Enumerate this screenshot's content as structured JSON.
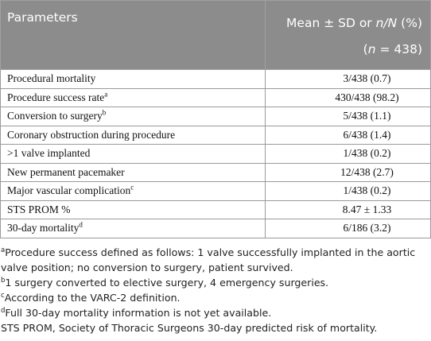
{
  "table": {
    "header": {
      "col1": "Parameters",
      "col2": {
        "line1": [
          "Mean ± SD or ",
          "n/N",
          " (%)"
        ],
        "line2": [
          "(",
          "n",
          " = 438)"
        ]
      }
    },
    "rows": [
      {
        "label": "Procedural mortality",
        "value": "3/438 (0.7)"
      },
      {
        "label": "Procedure success rate",
        "note": "a",
        "value": "430/438 (98.2)"
      },
      {
        "label": "Conversion to surgery",
        "note": "b",
        "value": "5/438 (1.1)"
      },
      {
        "label": "Coronary obstruction during procedure",
        "value": "6/438 (1.4)"
      },
      {
        "label": ">1 valve implanted",
        "value": "1/438 (0.2)"
      },
      {
        "label": "New permanent pacemaker",
        "value": "12/438 (2.7)"
      },
      {
        "label": "Major vascular complication",
        "note": "c",
        "value": "1/438 (0.2)"
      },
      {
        "label": "STS PROM %",
        "value": "8.47 ± 1.33"
      },
      {
        "label": "30-day mortality",
        "note": "d",
        "value": "6/186 (3.2)"
      }
    ]
  },
  "footnotes": [
    {
      "marker": "a",
      "text": "Procedure success defined as follows: 1 valve successfully implanted in the aortic valve position; no conversion to surgery, patient survived."
    },
    {
      "marker": "b",
      "text": "1 surgery converted to elective surgery, 4 emergency surgeries."
    },
    {
      "marker": "c",
      "text": "According to the VARC-2 definition."
    },
    {
      "marker": "d",
      "text": "Full 30-day mortality information is not yet available."
    },
    {
      "text": "STS PROM, Society of Thoracic Surgeons 30-day predicted risk of mortality."
    }
  ]
}
